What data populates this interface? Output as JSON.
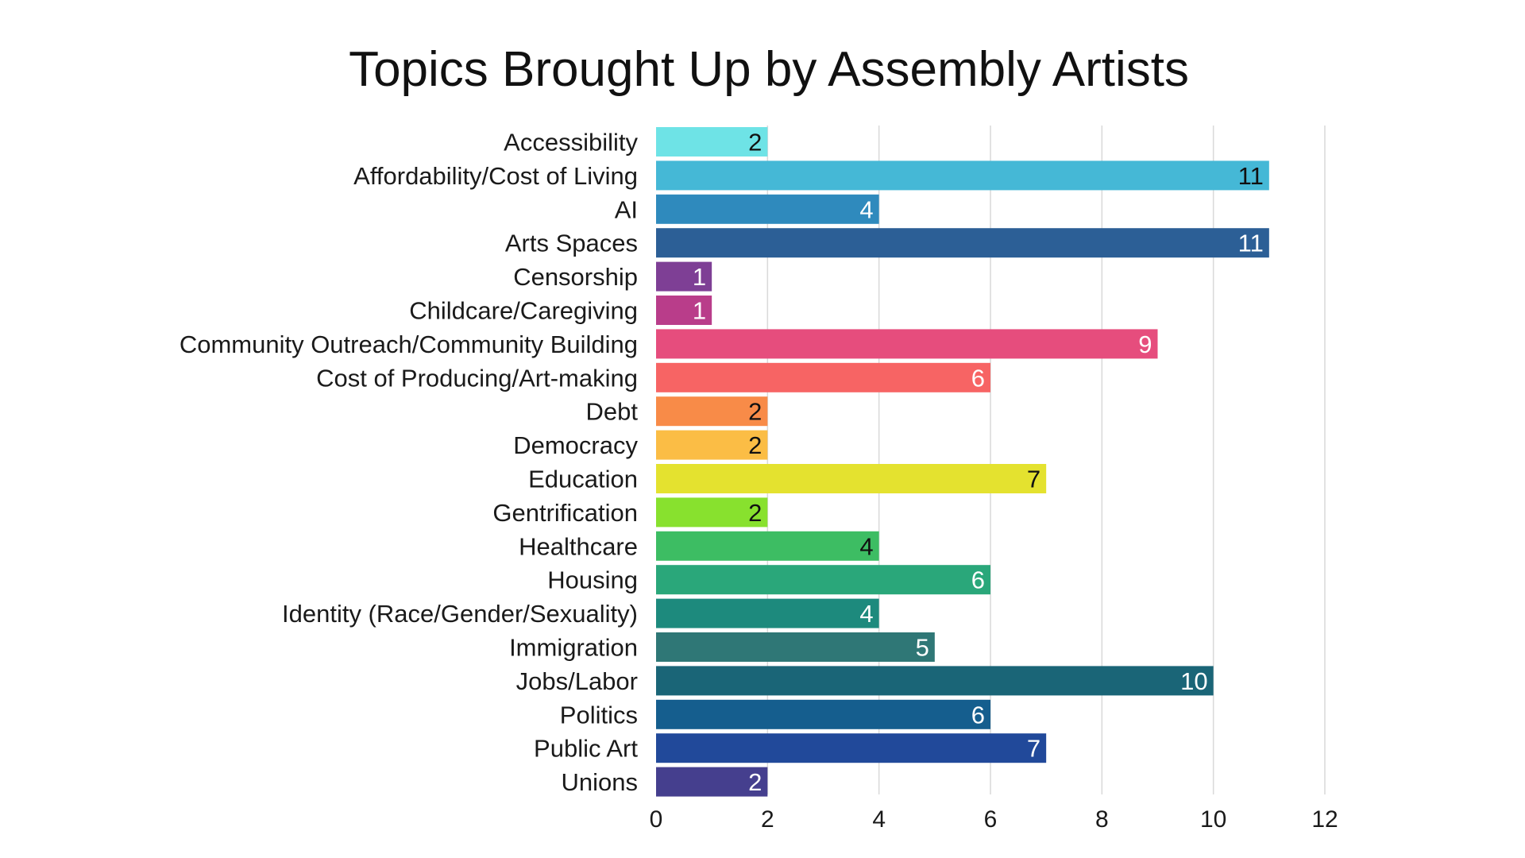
{
  "chart_data": {
    "type": "bar",
    "orientation": "horizontal",
    "title": "Topics Brought Up by Assembly Artists",
    "xlabel": "",
    "ylabel": "",
    "xlim": [
      0,
      12
    ],
    "ticks": [
      0,
      2,
      4,
      6,
      8,
      10,
      12
    ],
    "tick_labels": [
      "0",
      "2",
      "4",
      "6",
      "8",
      "10",
      "12"
    ],
    "grid": true,
    "legend": "none",
    "categories": [
      "Accessibility",
      "Affordability/Cost of Living",
      "AI",
      "Arts Spaces",
      "Censorship",
      "Childcare/Caregiving",
      "Community Outreach/Community Building",
      "Cost of Producing/Art-making",
      "Debt",
      "Democracy",
      "Education",
      "Gentrification",
      "Healthcare",
      "Housing",
      "Identity (Race/Gender/Sexuality)",
      "Immigration",
      "Jobs/Labor",
      "Politics",
      "Public Art",
      "Unions"
    ],
    "values": [
      2,
      11,
      4,
      11,
      1,
      1,
      9,
      6,
      2,
      2,
      7,
      2,
      4,
      6,
      4,
      5,
      10,
      6,
      7,
      2
    ],
    "value_labels": [
      "2",
      "11",
      "4",
      "11",
      "1",
      "1",
      "9",
      "6",
      "2",
      "2",
      "7",
      "2",
      "4",
      "6",
      "4",
      "5",
      "10",
      "6",
      "7",
      "2"
    ],
    "colors": [
      "#6ee3e6",
      "#45b8d6",
      "#2f8abd",
      "#2c5f96",
      "#7e3f95",
      "#b93d8a",
      "#e64d7d",
      "#f76464",
      "#f88b48",
      "#fbbd45",
      "#e4e22f",
      "#88e12e",
      "#3dbd63",
      "#2aa77a",
      "#1d8a7d",
      "#2f7776",
      "#1a6577",
      "#155e8e",
      "#21499a",
      "#453f8e"
    ],
    "label_colors": [
      "#111111",
      "#111111",
      "#ffffff",
      "#ffffff",
      "#ffffff",
      "#ffffff",
      "#ffffff",
      "#ffffff",
      "#111111",
      "#111111",
      "#111111",
      "#111111",
      "#111111",
      "#ffffff",
      "#ffffff",
      "#ffffff",
      "#ffffff",
      "#ffffff",
      "#ffffff",
      "#ffffff"
    ]
  }
}
